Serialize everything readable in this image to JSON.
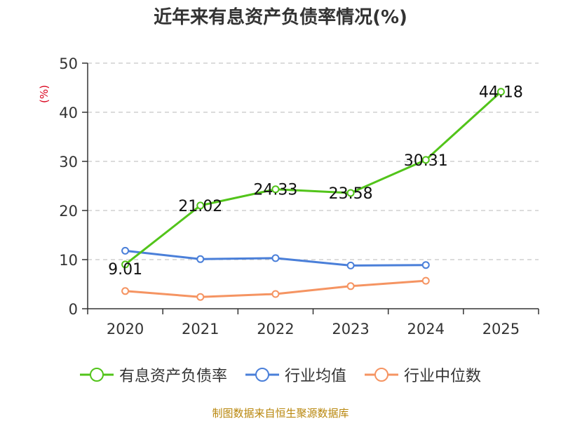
{
  "chart_data": {
    "type": "line",
    "title": "近年来有息资产负债率情况(%)",
    "y_unit_label": "(%)",
    "source_note": "制图数据来自恒生聚源数据库",
    "categories": [
      "2020",
      "2021",
      "2022",
      "2023",
      "2024",
      "2025"
    ],
    "ylim": [
      0,
      50
    ],
    "yticks": [
      "0",
      "10",
      "20",
      "30",
      "40",
      "50"
    ],
    "grid": true,
    "legend_position": "bottom",
    "series": [
      {
        "name": "有息资产负债率",
        "color": "#52c41a",
        "values": [
          9.01,
          21.02,
          24.33,
          23.58,
          30.31,
          44.18
        ],
        "labels": [
          "9.01",
          "21.02",
          "24.33",
          "23.58",
          "30.31",
          "44.18"
        ]
      },
      {
        "name": "行业均值",
        "color": "#4a7fd9",
        "values": [
          11.8,
          10.1,
          10.3,
          8.8,
          8.9,
          null
        ]
      },
      {
        "name": "行业中位数",
        "color": "#f59462",
        "values": [
          3.6,
          2.4,
          3.0,
          4.6,
          5.7,
          null
        ]
      }
    ]
  }
}
